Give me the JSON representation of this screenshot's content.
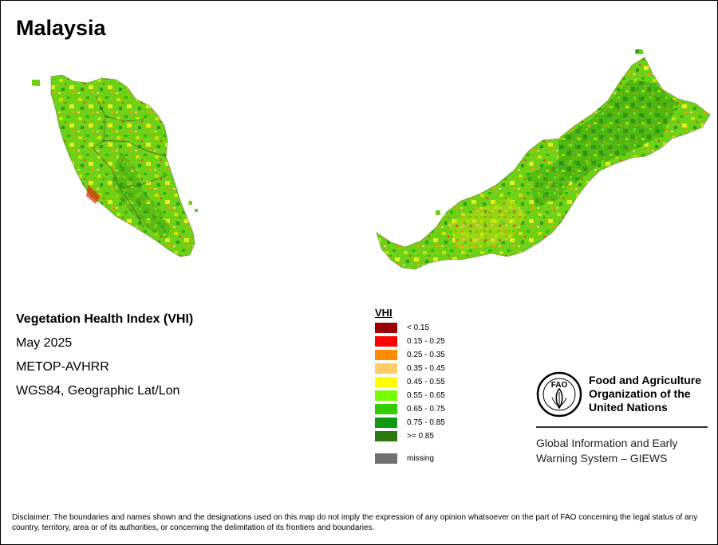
{
  "title": "Malaysia",
  "info": {
    "index_name": "Vegetation Health Index (VHI)",
    "period": "May 2025",
    "sensor": "METOP-AVHRR",
    "projection": "WGS84, Geographic Lat/Lon"
  },
  "legend": {
    "title": "VHI",
    "items": [
      {
        "label": "< 0.15",
        "color": "#990000"
      },
      {
        "label": "0.15 - 0.25",
        "color": "#ff0000"
      },
      {
        "label": "0.25 - 0.35",
        "color": "#ff8c00"
      },
      {
        "label": "0.35 - 0.45",
        "color": "#ffcc66"
      },
      {
        "label": "0.45 - 0.55",
        "color": "#ffff00"
      },
      {
        "label": "0.55 - 0.65",
        "color": "#77ff00"
      },
      {
        "label": "0.65 - 0.75",
        "color": "#33cc00"
      },
      {
        "label": "0.75 - 0.85",
        "color": "#119911"
      },
      {
        "label": ">= 0.85",
        "color": "#2a7a10"
      }
    ],
    "missing": {
      "label": "missing",
      "color": "#707070"
    }
  },
  "org": {
    "logo_text": "FAO",
    "name_lines": [
      "Food and Agriculture",
      "Organization of the",
      "United Nations"
    ],
    "giews_lines": [
      "Global Information and Early",
      "Warning System – GIEWS"
    ]
  },
  "disclaimer": "Disclaimer: The boundaries and names shown and the designations used on this map do not imply the expression of any opinion whatsoever on the part of FAO concerning the legal status of any country, territory, area or of its authorities, or concerning the delimitation of its frontiers and boundaries."
}
